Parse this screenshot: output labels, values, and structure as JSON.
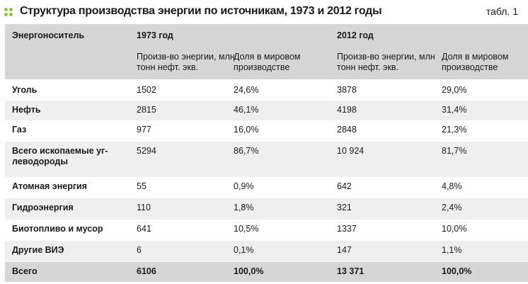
{
  "title": "Структура производства энергии по источникам, 1973 и 2012 годы",
  "table_label": "табл. 1",
  "table": {
    "header": {
      "source": "Энергоноситель",
      "year1": "1973 год",
      "year2": "2012 год",
      "subheaders": [
        "Произв-во энергии, млн тонн нефт. экв.",
        "Доля в мировом производстве",
        "Произв-во энергии, млн тонн нефт. экв.",
        "Доля в мировом производстве"
      ]
    },
    "rows": [
      [
        "Уголь",
        "1502",
        "24,6%",
        "3878",
        "29,0%"
      ],
      [
        "Нефть",
        "2815",
        "46,1%",
        "4198",
        "31,4%"
      ],
      [
        "Газ",
        "977",
        "16,0%",
        "2848",
        "21,3%"
      ],
      [
        "Всего ископаемые уг­леводороды",
        "5294",
        "86,7%",
        "10 924",
        "81,7%"
      ],
      [
        "Атомная энергия",
        "55",
        "0,9%",
        "642",
        "4,8%"
      ],
      [
        "Гидроэнергия",
        "110",
        "1,8%",
        "321",
        "2,4%"
      ],
      [
        "Биотопливо и мусор",
        "641",
        "10,5%",
        "1337",
        "10,0%"
      ],
      [
        "Другие ВИЭ",
        "6",
        "0,1%",
        "147",
        "1,1%"
      ],
      [
        "Всего",
        "6106",
        "100,0%",
        "13 371",
        "100,0%"
      ]
    ]
  }
}
